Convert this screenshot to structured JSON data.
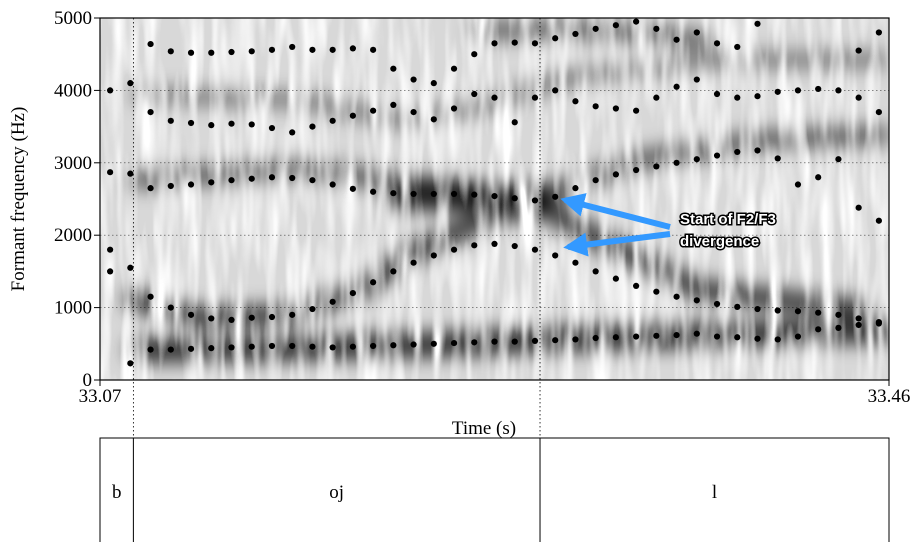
{
  "chart_data": {
    "type": "scatter",
    "x_label": "Time (s)",
    "y_label": "Formant frequency (Hz)",
    "xlim": [
      33.07,
      33.46
    ],
    "xticks": [
      33.07,
      33.46
    ],
    "ylim": [
      0,
      5000
    ],
    "yticks": [
      0,
      1000,
      2000,
      3000,
      4000,
      5000
    ],
    "grid": true,
    "annotation": [
      "Start of F2/F3",
      "divergence"
    ],
    "x": [
      33.075,
      33.085,
      33.095,
      33.105,
      33.115,
      33.125,
      33.135,
      33.145,
      33.155,
      33.165,
      33.175,
      33.185,
      33.195,
      33.205,
      33.215,
      33.225,
      33.235,
      33.245,
      33.255,
      33.265,
      33.275,
      33.285,
      33.295,
      33.305,
      33.315,
      33.325,
      33.335,
      33.345,
      33.355,
      33.365,
      33.375,
      33.385,
      33.395,
      33.405,
      33.415,
      33.425,
      33.435,
      33.445,
      33.455
    ],
    "series": [
      {
        "color": "#000000",
        "values": [
          1500,
          230,
          420,
          420,
          430,
          440,
          450,
          460,
          470,
          470,
          460,
          450,
          460,
          470,
          480,
          490,
          500,
          510,
          520,
          530,
          530,
          540,
          550,
          560,
          580,
          590,
          600,
          610,
          620,
          640,
          600,
          590,
          570,
          560,
          600,
          700,
          720,
          760,
          780
        ]
      },
      {
        "color": "#000000",
        "values": [
          1800,
          1550,
          1150,
          1000,
          900,
          850,
          830,
          860,
          870,
          900,
          980,
          1080,
          1200,
          1350,
          1500,
          1620,
          1720,
          1800,
          1860,
          1880,
          1850,
          1800,
          1720,
          1620,
          1500,
          1400,
          1300,
          1220,
          1150,
          1100,
          1050,
          1010,
          980,
          960,
          950,
          930,
          900,
          850,
          800
        ]
      },
      {
        "color": "#000000",
        "values": [
          2870,
          2850,
          2650,
          2680,
          2700,
          2730,
          2760,
          2780,
          2800,
          2790,
          2760,
          2700,
          2640,
          2600,
          2580,
          2570,
          2570,
          2570,
          2560,
          2540,
          2510,
          2480,
          2530,
          2650,
          2760,
          2840,
          2900,
          2950,
          3000,
          3050,
          3100,
          3150,
          3170,
          3060,
          2700,
          2800,
          3050,
          2380,
          2200
        ]
      },
      {
        "color": "#000000",
        "values": [
          4000,
          4100,
          3700,
          3580,
          3550,
          3520,
          3540,
          3530,
          3480,
          3420,
          3500,
          3580,
          3650,
          3720,
          3800,
          3700,
          3600,
          3750,
          3950,
          3900,
          3560,
          3900,
          4000,
          3850,
          3780,
          3750,
          3720,
          3900,
          4050,
          4150,
          3950,
          3900,
          3920,
          3980,
          4000,
          4020,
          4000,
          3900,
          3700
        ]
      },
      {
        "color": "#000000",
        "values": [
          null,
          null,
          4640,
          4540,
          4520,
          4520,
          4530,
          4540,
          4560,
          4600,
          4560,
          4560,
          4580,
          4560,
          4300,
          4150,
          4100,
          4300,
          4500,
          4650,
          4660,
          4650,
          4720,
          4780,
          4850,
          4900,
          4950,
          4850,
          4700,
          4800,
          4650,
          4600,
          4920,
          null,
          null,
          null,
          null,
          4550,
          4800
        ]
      }
    ],
    "tier": {
      "boundaries": [
        33.07,
        33.0865,
        33.2875,
        33.46
      ],
      "labels": [
        "b",
        "oj",
        "l"
      ]
    }
  }
}
